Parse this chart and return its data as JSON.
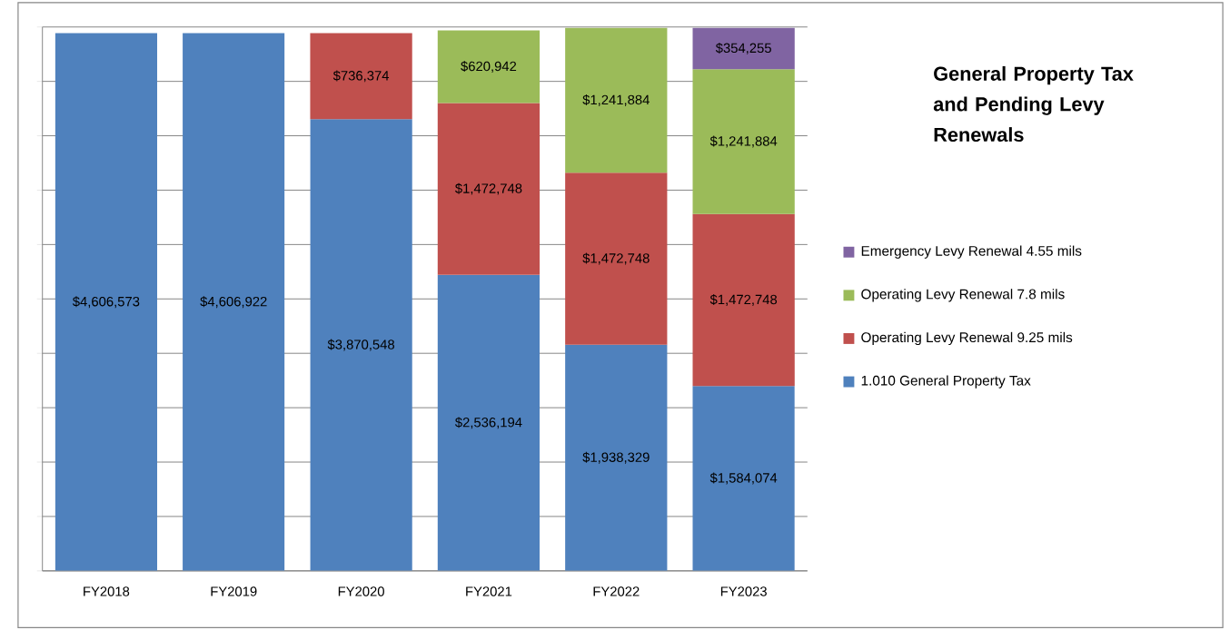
{
  "chart_data": {
    "type": "bar",
    "stacked": true,
    "title": "General Property Tax and Pending Levy Renewals",
    "categories": [
      "FY2018",
      "FY2019",
      "FY2020",
      "FY2021",
      "FY2022",
      "FY2023"
    ],
    "series": [
      {
        "name": "1.010 General Property Tax",
        "color": "#4f81bd",
        "values": [
          4606573,
          4606922,
          3870548,
          2536194,
          1938329,
          1584074
        ],
        "value_labels": [
          "$4,606,573",
          "$4,606,922",
          "$3,870,548",
          "$2,536,194",
          "$1,938,329",
          "$1,584,074"
        ]
      },
      {
        "name": "Operating Levy Renewal 9.25 mils",
        "color": "#c0504d",
        "values": [
          null,
          null,
          736374,
          1472748,
          1472748,
          1472748
        ],
        "value_labels": [
          null,
          null,
          "$736,374",
          "$1,472,748",
          "$1,472,748",
          "$1,472,748"
        ]
      },
      {
        "name": "Operating Levy Renewal 7.8 mils",
        "color": "#9bbb59",
        "values": [
          null,
          null,
          null,
          620942,
          1241884,
          1241884
        ],
        "value_labels": [
          null,
          null,
          null,
          "$620,942",
          "$1,241,884",
          "$1,241,884"
        ]
      },
      {
        "name": "Emergency Levy Renewal 4.55 mils",
        "color": "#8064a2",
        "values": [
          null,
          null,
          null,
          null,
          null,
          354255
        ],
        "value_labels": [
          null,
          null,
          null,
          null,
          null,
          "$354,255"
        ]
      }
    ],
    "ylim": [
      0,
      4660000
    ],
    "yticks": [
      {
        "value": 0,
        "label": null
      },
      {
        "value": 466000,
        "label": null
      },
      {
        "value": 932000,
        "label": null
      },
      {
        "value": 1398000,
        "label": null
      },
      {
        "value": 1864000,
        "label": null
      },
      {
        "value": 2330000,
        "label": null
      },
      {
        "value": 2796000,
        "label": null
      },
      {
        "value": 3262000,
        "label": null
      },
      {
        "value": 3728000,
        "label": null
      },
      {
        "value": 4194000,
        "label": null
      },
      {
        "value": 4660000,
        "label": null
      }
    ],
    "grid": "y",
    "legend": "right"
  }
}
